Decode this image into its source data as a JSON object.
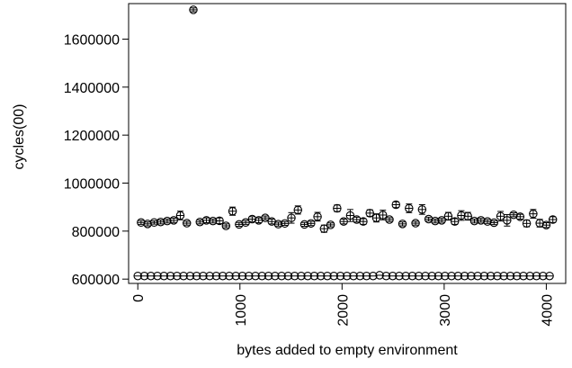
{
  "chart_data": {
    "type": "scatter",
    "title": "",
    "xlabel": "bytes added to empty environment",
    "ylabel": "cycles(00)",
    "xlim": [
      -90,
      4190
    ],
    "ylim": [
      582000,
      1748000
    ],
    "x_ticks": [
      0,
      1000,
      2000,
      3000,
      4000
    ],
    "x_tick_labels": [
      "0",
      "1000",
      "2000",
      "3000",
      "4000"
    ],
    "y_ticks": [
      600000,
      800000,
      1000000,
      1200000,
      1400000,
      1600000
    ],
    "y_tick_labels": [
      "600000",
      "800000",
      "1000000",
      "1200000",
      "1400000",
      "1600000"
    ],
    "grid": false,
    "marker": "open-circle-with-error-bar",
    "series": [
      {
        "x": [
          0,
          64,
          128,
          192,
          256,
          320,
          384,
          448,
          512,
          576,
          640,
          704,
          768,
          832,
          896,
          960,
          1024,
          1088,
          1152,
          1216,
          1280,
          1344,
          1408,
          1472,
          1536,
          1600,
          1664,
          1728,
          1792,
          1856,
          1920,
          1984,
          2048,
          2112,
          2176,
          2240,
          2304,
          2368,
          2432,
          2496,
          2560,
          2624,
          2688,
          2752,
          2816,
          2880,
          2944,
          3008,
          3072,
          3136,
          3200,
          3264,
          3328,
          3392,
          3456,
          3520,
          3584,
          3648,
          3712,
          3776,
          3840,
          3904,
          3968,
          4032
        ],
        "values": [
          613000,
          613000,
          613000,
          613000,
          613000,
          613000,
          613000,
          613000,
          613000,
          613000,
          613000,
          613000,
          613000,
          613000,
          613000,
          613000,
          613000,
          613000,
          613000,
          613000,
          613000,
          613000,
          613000,
          613000,
          613000,
          613000,
          613000,
          613000,
          613000,
          613000,
          613000,
          613000,
          613000,
          613000,
          613000,
          613000,
          613000,
          616000,
          613000,
          613000,
          613000,
          613000,
          613000,
          613000,
          613000,
          613000,
          613000,
          613000,
          613000,
          613000,
          613000,
          613000,
          613000,
          613000,
          613000,
          613000,
          613000,
          613000,
          613000,
          613000,
          613000,
          613000,
          613000,
          613000
        ],
        "errors": [
          0,
          0,
          0,
          0,
          0,
          0,
          0,
          0,
          0,
          0,
          0,
          0,
          0,
          0,
          0,
          0,
          0,
          0,
          0,
          0,
          0,
          0,
          0,
          0,
          0,
          0,
          0,
          0,
          0,
          0,
          0,
          0,
          0,
          0,
          0,
          0,
          0,
          0,
          0,
          0,
          0,
          0,
          0,
          0,
          0,
          0,
          0,
          0,
          0,
          0,
          0,
          0,
          0,
          0,
          0,
          0,
          0,
          0,
          0,
          0,
          0,
          0,
          0,
          0
        ]
      },
      {
        "x": [
          32,
          96,
          160,
          224,
          288,
          352,
          416,
          480,
          544,
          608,
          672,
          736,
          800,
          864,
          928,
          992,
          1056,
          1120,
          1184,
          1248,
          1312,
          1376,
          1440,
          1504,
          1568,
          1632,
          1696,
          1760,
          1824,
          1888,
          1952,
          2016,
          2080,
          2144,
          2208,
          2272,
          2336,
          2400,
          2464,
          2528,
          2592,
          2656,
          2720,
          2784,
          2848,
          2912,
          2976,
          3040,
          3104,
          3168,
          3232,
          3296,
          3360,
          3424,
          3488,
          3552,
          3616,
          3680,
          3744,
          3808,
          3872,
          3936,
          4000,
          4064
        ],
        "values": [
          836000,
          830000,
          836000,
          838000,
          842000,
          845000,
          865000,
          833000,
          1722000,
          838000,
          845000,
          842000,
          843000,
          822000,
          883000,
          828000,
          836000,
          850000,
          845000,
          855000,
          840000,
          829000,
          832000,
          855000,
          888000,
          828000,
          832000,
          860000,
          810000,
          826000,
          895000,
          840000,
          865000,
          848000,
          840000,
          875000,
          855000,
          867000,
          848000,
          910000,
          830000,
          895000,
          833000,
          890000,
          850000,
          842000,
          845000,
          862000,
          840000,
          865000,
          862000,
          842000,
          845000,
          840000,
          835000,
          862000,
          845000,
          868000,
          860000,
          832000,
          872000,
          833000,
          825000,
          848000
        ],
        "errors": [
          8000,
          8000,
          7000,
          8000,
          8000,
          9000,
          18000,
          8000,
          8000,
          8000,
          10000,
          8000,
          12000,
          8000,
          17000,
          8000,
          8000,
          10000,
          10000,
          8000,
          10000,
          8000,
          8000,
          22000,
          17000,
          8000,
          9000,
          18000,
          15000,
          8000,
          14000,
          10000,
          25000,
          10000,
          12000,
          14000,
          17000,
          20000,
          8000,
          12000,
          8000,
          18000,
          8000,
          20000,
          8000,
          8000,
          8000,
          16000,
          12000,
          20000,
          16000,
          8000,
          8000,
          8000,
          8000,
          20000,
          24000,
          8000,
          10000,
          14000,
          18000,
          16000,
          10000,
          12000
        ]
      }
    ]
  }
}
